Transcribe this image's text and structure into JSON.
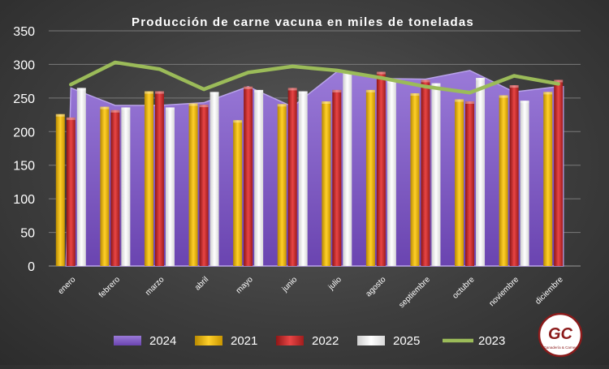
{
  "chart_data": {
    "type": "bar",
    "title": "Producción de carne vacuna  en miles de toneladas",
    "xlabel": "",
    "ylabel": "",
    "ylim": [
      0,
      350
    ],
    "yticks": [
      0,
      50,
      100,
      150,
      200,
      250,
      300,
      350
    ],
    "grid": true,
    "legend_position": "bottom",
    "categories": [
      "enero",
      "febrero",
      "marzo",
      "abril",
      "mayo",
      "junio",
      "julio",
      "agosto",
      "septiembre",
      "octubre",
      "noviembre",
      "diciembre"
    ],
    "legend_order": [
      "2024",
      "2021",
      "2022",
      "2025",
      "2023"
    ],
    "series": [
      {
        "name": "2024",
        "kind": "area",
        "color": "#7e57c2",
        "values": [
          265,
          239,
          239,
          243,
          267,
          237,
          289,
          279,
          278,
          291,
          259,
          267
        ]
      },
      {
        "name": "2021",
        "kind": "bar",
        "color": "#ffc000",
        "values": [
          226,
          237,
          260,
          242,
          217,
          241,
          245,
          262,
          257,
          248,
          254,
          259
        ]
      },
      {
        "name": "2022",
        "kind": "bar",
        "color": "#d32f2f",
        "values": [
          221,
          232,
          260,
          240,
          267,
          265,
          262,
          289,
          277,
          245,
          269,
          277
        ]
      },
      {
        "name": "2025",
        "kind": "bar",
        "color": "#ffffff",
        "values": [
          265,
          236,
          236,
          259,
          262,
          260,
          290,
          276,
          272,
          280,
          246,
          null
        ]
      },
      {
        "name": "2023",
        "kind": "line",
        "color": "#9bbb59",
        "values": [
          270,
          303,
          293,
          263,
          288,
          297,
          291,
          280,
          267,
          258,
          283,
          271
        ]
      }
    ]
  },
  "logo": {
    "text": "GC",
    "subtitle": "Ganadería & Carnes"
  }
}
